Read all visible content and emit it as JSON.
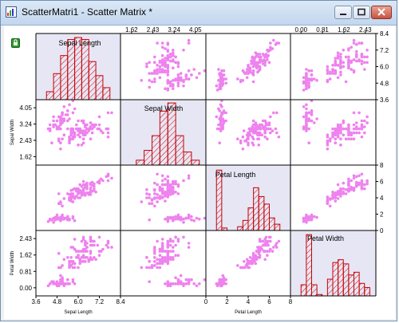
{
  "window": {
    "title": "ScatterMatri1 - Scatter Matrix *",
    "icons": [
      "graph-window-icon",
      "minimize-icon",
      "maximize-icon",
      "close-icon",
      "lock-icon"
    ],
    "colors": {
      "bar_stroke": "#cc0000",
      "point": "#ee82ee",
      "diag_bg": "#e6e6f5"
    }
  },
  "chart_data": {
    "type": "scatter",
    "variables": [
      {
        "name": "Sepal Length",
        "range": [
          3.6,
          8.4
        ],
        "ticks": [
          "3.6",
          "4.8",
          "6.0",
          "7.2",
          "8.4"
        ]
      },
      {
        "name": "Sepal Width",
        "range": [
          1.2,
          4.45
        ],
        "ticks": [
          "1.62",
          "2.43",
          "3.24",
          "4.05"
        ]
      },
      {
        "name": "Petal Length",
        "range": [
          0,
          8
        ],
        "ticks": [
          "0",
          "2",
          "4",
          "6",
          "8"
        ]
      },
      {
        "name": "Petal Width",
        "range": [
          -0.4,
          2.83
        ],
        "ticks": [
          "0.00",
          "0.81",
          "1.62",
          "2.43"
        ]
      }
    ],
    "axis_labels": {
      "bottom": [
        "Sepal Length",
        "",
        "Petal Length",
        ""
      ],
      "left": [
        "",
        "Sepal Width",
        "",
        "Petal Width"
      ]
    },
    "histograms": [
      {
        "edges": [
          4.2,
          4.6,
          5.0,
          5.4,
          5.8,
          6.2,
          6.6,
          7.0,
          7.4,
          7.8
        ],
        "counts": [
          4,
          13,
          22,
          30,
          31,
          30,
          19,
          12,
          6
        ]
      },
      {
        "edges": [
          1.8,
          2.1,
          2.4,
          2.7,
          3.0,
          3.3,
          3.6,
          3.9,
          4.2
        ],
        "counts": [
          3,
          9,
          18,
          33,
          38,
          18,
          8,
          3
        ]
      },
      {
        "edges": [
          1.0,
          1.5,
          2.0,
          2.5,
          3.0,
          3.5,
          4.0,
          4.5,
          5.0,
          5.5,
          6.0,
          6.5,
          7.0
        ],
        "counts": [
          48,
          2,
          0,
          0,
          3,
          8,
          18,
          34,
          27,
          21,
          10,
          5
        ]
      },
      {
        "edges": [
          0.0,
          0.2,
          0.4,
          0.6,
          0.8,
          1.0,
          1.2,
          1.4,
          1.6,
          1.8,
          2.0,
          2.2,
          2.4,
          2.6
        ],
        "counts": [
          8,
          44,
          8,
          1,
          0,
          12,
          24,
          26,
          23,
          15,
          17,
          9,
          6
        ]
      }
    ],
    "histogram_max_count": [
      33,
      40,
      52,
      47
    ],
    "points": [
      [
        5.1,
        3.5,
        1.4,
        0.2
      ],
      [
        4.9,
        3.0,
        1.4,
        0.2
      ],
      [
        4.7,
        3.2,
        1.3,
        0.2
      ],
      [
        4.6,
        3.1,
        1.5,
        0.2
      ],
      [
        5.0,
        3.6,
        1.4,
        0.2
      ],
      [
        5.4,
        3.9,
        1.7,
        0.4
      ],
      [
        4.6,
        3.4,
        1.4,
        0.3
      ],
      [
        5.0,
        3.4,
        1.5,
        0.2
      ],
      [
        4.4,
        2.9,
        1.4,
        0.2
      ],
      [
        4.9,
        3.1,
        1.5,
        0.1
      ],
      [
        5.4,
        3.7,
        1.5,
        0.2
      ],
      [
        4.8,
        3.4,
        1.6,
        0.2
      ],
      [
        4.8,
        3.0,
        1.4,
        0.1
      ],
      [
        4.3,
        3.0,
        1.1,
        0.1
      ],
      [
        5.8,
        4.0,
        1.2,
        0.2
      ],
      [
        5.7,
        4.4,
        1.5,
        0.4
      ],
      [
        5.4,
        3.9,
        1.3,
        0.4
      ],
      [
        5.1,
        3.5,
        1.4,
        0.3
      ],
      [
        5.7,
        3.8,
        1.7,
        0.3
      ],
      [
        5.1,
        3.8,
        1.5,
        0.3
      ],
      [
        5.4,
        3.4,
        1.7,
        0.2
      ],
      [
        5.1,
        3.7,
        1.5,
        0.4
      ],
      [
        4.6,
        3.6,
        1.0,
        0.2
      ],
      [
        5.1,
        3.3,
        1.7,
        0.5
      ],
      [
        4.8,
        3.4,
        1.9,
        0.2
      ],
      [
        5.0,
        3.0,
        1.6,
        0.2
      ],
      [
        5.0,
        3.4,
        1.6,
        0.4
      ],
      [
        5.2,
        3.5,
        1.5,
        0.2
      ],
      [
        5.2,
        3.4,
        1.4,
        0.2
      ],
      [
        4.7,
        3.2,
        1.6,
        0.2
      ],
      [
        4.8,
        3.1,
        1.6,
        0.2
      ],
      [
        5.4,
        3.4,
        1.5,
        0.4
      ],
      [
        5.2,
        4.1,
        1.5,
        0.1
      ],
      [
        5.5,
        4.2,
        1.4,
        0.2
      ],
      [
        4.9,
        3.1,
        1.5,
        0.2
      ],
      [
        5.0,
        3.2,
        1.2,
        0.2
      ],
      [
        5.5,
        3.5,
        1.3,
        0.2
      ],
      [
        4.9,
        3.6,
        1.4,
        0.1
      ],
      [
        4.4,
        3.0,
        1.3,
        0.2
      ],
      [
        5.1,
        3.4,
        1.5,
        0.2
      ],
      [
        5.0,
        3.5,
        1.3,
        0.3
      ],
      [
        4.5,
        2.3,
        1.3,
        0.3
      ],
      [
        4.4,
        3.2,
        1.3,
        0.2
      ],
      [
        5.0,
        3.5,
        1.6,
        0.6
      ],
      [
        5.1,
        3.8,
        1.9,
        0.4
      ],
      [
        4.8,
        3.0,
        1.4,
        0.3
      ],
      [
        5.1,
        3.8,
        1.6,
        0.2
      ],
      [
        4.6,
        3.2,
        1.4,
        0.2
      ],
      [
        5.3,
        3.7,
        1.5,
        0.2
      ],
      [
        5.0,
        3.3,
        1.4,
        0.2
      ],
      [
        7.0,
        3.2,
        4.7,
        1.4
      ],
      [
        6.4,
        3.2,
        4.5,
        1.5
      ],
      [
        6.9,
        3.1,
        4.9,
        1.5
      ],
      [
        5.5,
        2.3,
        4.0,
        1.3
      ],
      [
        6.5,
        2.8,
        4.6,
        1.5
      ],
      [
        5.7,
        2.8,
        4.5,
        1.3
      ],
      [
        6.3,
        3.3,
        4.7,
        1.6
      ],
      [
        4.9,
        2.4,
        3.3,
        1.0
      ],
      [
        6.6,
        2.9,
        4.6,
        1.3
      ],
      [
        5.2,
        2.7,
        3.9,
        1.4
      ],
      [
        5.0,
        2.0,
        3.5,
        1.0
      ],
      [
        5.9,
        3.0,
        4.2,
        1.5
      ],
      [
        6.0,
        2.2,
        4.0,
        1.0
      ],
      [
        6.1,
        2.9,
        4.7,
        1.4
      ],
      [
        5.6,
        2.9,
        3.6,
        1.3
      ],
      [
        6.7,
        3.1,
        4.4,
        1.4
      ],
      [
        5.6,
        3.0,
        4.5,
        1.5
      ],
      [
        5.8,
        2.7,
        4.1,
        1.0
      ],
      [
        6.2,
        2.2,
        4.5,
        1.5
      ],
      [
        5.6,
        2.5,
        3.9,
        1.1
      ],
      [
        5.9,
        3.2,
        4.8,
        1.8
      ],
      [
        6.1,
        2.8,
        4.0,
        1.3
      ],
      [
        6.3,
        2.5,
        4.9,
        1.5
      ],
      [
        6.1,
        2.8,
        4.7,
        1.2
      ],
      [
        6.4,
        2.9,
        4.3,
        1.3
      ],
      [
        6.6,
        3.0,
        4.4,
        1.4
      ],
      [
        6.8,
        2.8,
        4.8,
        1.4
      ],
      [
        6.7,
        3.0,
        5.0,
        1.7
      ],
      [
        6.0,
        2.9,
        4.5,
        1.5
      ],
      [
        5.7,
        2.6,
        3.5,
        1.0
      ],
      [
        5.5,
        2.4,
        3.8,
        1.1
      ],
      [
        5.5,
        2.4,
        3.7,
        1.0
      ],
      [
        5.8,
        2.7,
        3.9,
        1.2
      ],
      [
        6.0,
        2.7,
        5.1,
        1.6
      ],
      [
        5.4,
        3.0,
        4.5,
        1.5
      ],
      [
        6.0,
        3.4,
        4.5,
        1.6
      ],
      [
        6.7,
        3.1,
        4.7,
        1.5
      ],
      [
        6.3,
        2.3,
        4.4,
        1.3
      ],
      [
        5.6,
        3.0,
        4.1,
        1.3
      ],
      [
        5.5,
        2.5,
        4.0,
        1.3
      ],
      [
        5.5,
        2.6,
        4.4,
        1.2
      ],
      [
        6.1,
        3.0,
        4.6,
        1.4
      ],
      [
        5.8,
        2.6,
        4.0,
        1.2
      ],
      [
        5.0,
        2.3,
        3.3,
        1.0
      ],
      [
        5.6,
        2.7,
        4.2,
        1.3
      ],
      [
        5.7,
        3.0,
        4.2,
        1.2
      ],
      [
        5.7,
        2.9,
        4.2,
        1.3
      ],
      [
        6.2,
        2.9,
        4.3,
        1.3
      ],
      [
        5.1,
        2.5,
        3.0,
        1.1
      ],
      [
        5.7,
        2.8,
        4.1,
        1.3
      ],
      [
        6.3,
        3.3,
        6.0,
        2.5
      ],
      [
        5.8,
        2.7,
        5.1,
        1.9
      ],
      [
        7.1,
        3.0,
        5.9,
        2.1
      ],
      [
        6.3,
        2.9,
        5.6,
        1.8
      ],
      [
        6.5,
        3.0,
        5.8,
        2.2
      ],
      [
        7.6,
        3.0,
        6.6,
        2.1
      ],
      [
        4.9,
        2.5,
        4.5,
        1.7
      ],
      [
        7.3,
        2.9,
        6.3,
        1.8
      ],
      [
        6.7,
        2.5,
        5.8,
        1.8
      ],
      [
        7.2,
        3.6,
        6.1,
        2.5
      ],
      [
        6.5,
        3.2,
        5.1,
        2.0
      ],
      [
        6.4,
        2.7,
        5.3,
        1.9
      ],
      [
        6.8,
        3.0,
        5.5,
        2.1
      ],
      [
        5.7,
        2.5,
        5.0,
        2.0
      ],
      [
        5.8,
        2.8,
        5.1,
        2.4
      ],
      [
        6.4,
        3.2,
        5.3,
        2.3
      ],
      [
        6.5,
        3.0,
        5.5,
        1.8
      ],
      [
        7.7,
        3.8,
        6.7,
        2.2
      ],
      [
        7.7,
        2.6,
        6.9,
        2.3
      ],
      [
        6.0,
        2.2,
        5.0,
        1.5
      ],
      [
        6.9,
        3.2,
        5.7,
        2.3
      ],
      [
        5.6,
        2.8,
        4.9,
        2.0
      ],
      [
        7.7,
        2.8,
        6.7,
        2.0
      ],
      [
        6.3,
        2.7,
        4.9,
        1.8
      ],
      [
        6.7,
        3.3,
        5.7,
        2.1
      ],
      [
        7.2,
        3.2,
        6.0,
        1.8
      ],
      [
        6.2,
        2.8,
        4.8,
        1.8
      ],
      [
        6.1,
        3.0,
        4.9,
        1.8
      ],
      [
        6.4,
        2.8,
        5.6,
        2.1
      ],
      [
        7.2,
        3.0,
        5.8,
        1.6
      ],
      [
        7.4,
        2.8,
        6.1,
        1.9
      ],
      [
        7.9,
        3.8,
        6.4,
        2.0
      ],
      [
        6.4,
        2.8,
        5.6,
        2.2
      ],
      [
        6.3,
        2.8,
        5.1,
        1.5
      ],
      [
        6.1,
        2.6,
        5.6,
        1.4
      ],
      [
        7.7,
        3.0,
        6.1,
        2.3
      ],
      [
        6.3,
        3.4,
        5.6,
        2.4
      ],
      [
        6.4,
        3.1,
        5.5,
        1.8
      ],
      [
        6.0,
        3.0,
        4.8,
        1.8
      ],
      [
        6.9,
        3.1,
        5.4,
        2.1
      ],
      [
        6.7,
        3.1,
        5.6,
        2.4
      ],
      [
        6.9,
        3.1,
        5.1,
        2.3
      ],
      [
        5.8,
        2.7,
        5.1,
        1.9
      ],
      [
        6.8,
        3.2,
        5.9,
        2.3
      ],
      [
        6.7,
        3.3,
        5.7,
        2.5
      ],
      [
        6.7,
        3.0,
        5.2,
        2.3
      ],
      [
        6.3,
        2.5,
        5.0,
        1.9
      ],
      [
        6.5,
        3.0,
        5.2,
        2.0
      ],
      [
        6.2,
        3.4,
        5.4,
        2.3
      ],
      [
        5.9,
        3.0,
        5.1,
        1.8
      ]
    ]
  }
}
